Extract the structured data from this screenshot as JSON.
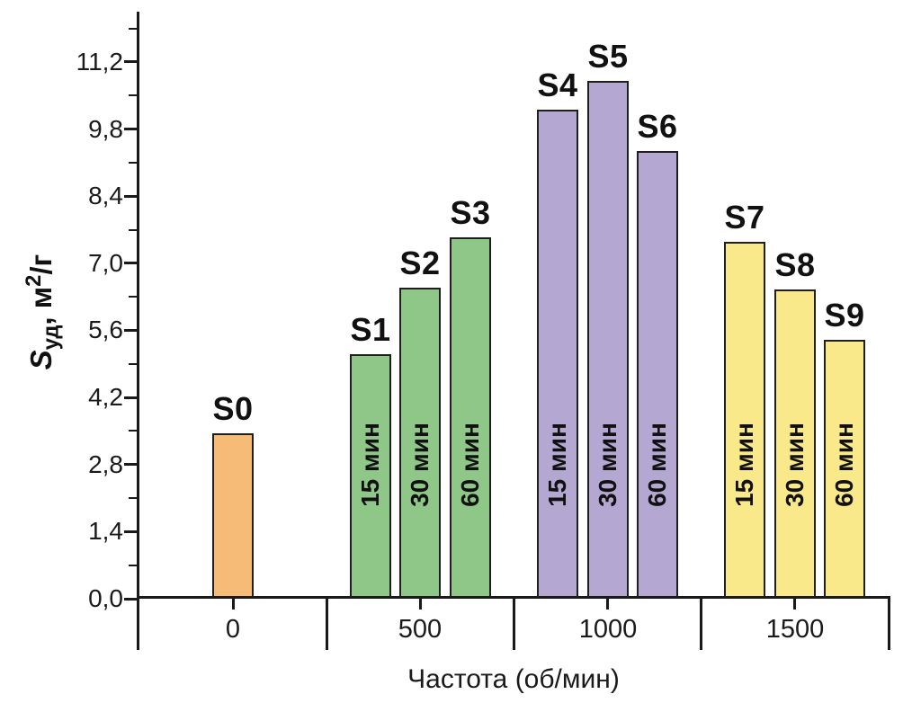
{
  "chart_data": {
    "type": "bar",
    "title": "",
    "xlabel": "Частота (об/мин)",
    "ylabel": "Sуд, м²/г",
    "ylabel_parts": {
      "symbol": "S",
      "subscript": "уд",
      "middle": ", м",
      "superscript": "2",
      "suffix": "/г"
    },
    "ylim": [
      0,
      12.25
    ],
    "grid": false,
    "legend": false,
    "axis_color": "#1a1a1a",
    "bar_border_color": "#1f1f1f",
    "y_axis": {
      "major_ticks": [
        {
          "value": 0.0,
          "label": "0,0"
        },
        {
          "value": 1.4,
          "label": "1,4"
        },
        {
          "value": 2.8,
          "label": "2,8"
        },
        {
          "value": 4.2,
          "label": "4,2"
        },
        {
          "value": 5.6,
          "label": "5,6"
        },
        {
          "value": 7.0,
          "label": "7,0"
        },
        {
          "value": 8.4,
          "label": "8,4"
        },
        {
          "value": 9.8,
          "label": "9,8"
        },
        {
          "value": 11.2,
          "label": "11,2"
        }
      ],
      "minor_tick_values": [
        0.7,
        2.1,
        3.5,
        4.9,
        6.3,
        7.7,
        9.1,
        10.5,
        11.9
      ]
    },
    "groups": [
      {
        "category": "0",
        "color": "#f6bb77",
        "bars": [
          {
            "name": "S0",
            "value": 3.45,
            "duration": null
          }
        ]
      },
      {
        "category": "500",
        "color": "#8fc789",
        "bars": [
          {
            "name": "S1",
            "value": 5.1,
            "duration": "15 мин"
          },
          {
            "name": "S2",
            "value": 6.5,
            "duration": "30 мин"
          },
          {
            "name": "S3",
            "value": 7.55,
            "duration": "60 мин"
          }
        ]
      },
      {
        "category": "1000",
        "color": "#b4a8d3",
        "bars": [
          {
            "name": "S4",
            "value": 10.2,
            "duration": "15 мин"
          },
          {
            "name": "S5",
            "value": 10.8,
            "duration": "30 мин"
          },
          {
            "name": "S6",
            "value": 9.35,
            "duration": "60 мин"
          }
        ]
      },
      {
        "category": "1500",
        "color": "#fae98a",
        "bars": [
          {
            "name": "S7",
            "value": 7.45,
            "duration": "15 мин"
          },
          {
            "name": "S8",
            "value": 6.45,
            "duration": "30 мин"
          },
          {
            "name": "S9",
            "value": 5.4,
            "duration": "60 мин"
          }
        ]
      }
    ]
  }
}
